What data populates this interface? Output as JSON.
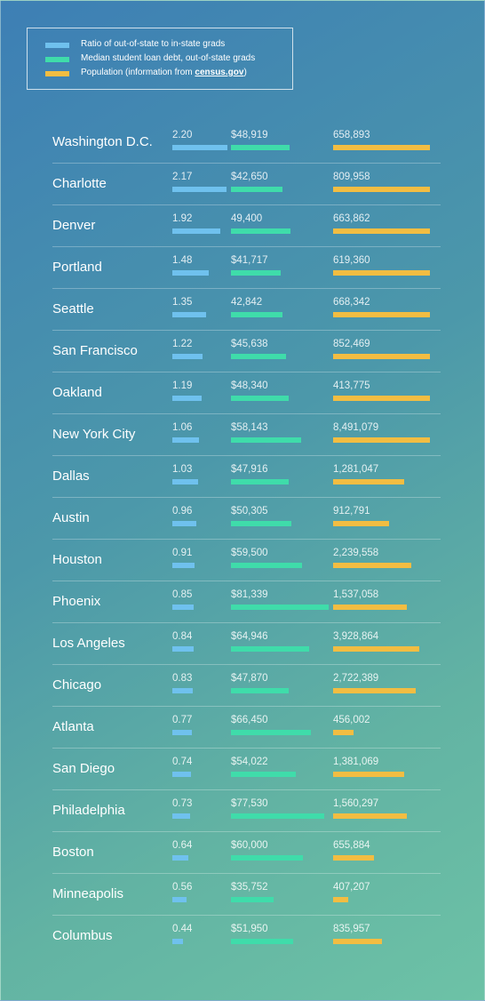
{
  "colors": {
    "ratio": "#6fc1ee",
    "debt": "#3fdcaa",
    "population": "#f2bd42"
  },
  "legend": [
    {
      "key": "ratio",
      "label": "Ratio of out-of-state to in-state grads",
      "swatch_color": "#6fc1ee"
    },
    {
      "key": "debt",
      "label": "Median student loan debt, out-of-state grads",
      "swatch_color": "#3fdcaa"
    },
    {
      "key": "population",
      "label_prefix": "Population (information from ",
      "label_link": "census.gov",
      "label_suffix": ")",
      "swatch_color": "#f2bd42"
    }
  ],
  "chart_data": {
    "type": "bar",
    "orientation": "horizontal",
    "categories": [
      "Washington D.C.",
      "Charlotte",
      "Denver",
      "Portland",
      "Seattle",
      "San Francisco",
      "Oakland",
      "New York City",
      "Dallas",
      "Austin",
      "Houston",
      "Phoenix",
      "Los Angeles",
      "Chicago",
      "Atlanta",
      "San Diego",
      "Philadelphia",
      "Boston",
      "Minneapolis",
      "Columbus"
    ],
    "series": [
      {
        "name": "Ratio of out-of-state to in-state grads",
        "key": "ratio",
        "values": [
          2.2,
          2.17,
          1.92,
          1.48,
          1.35,
          1.22,
          1.19,
          1.06,
          1.03,
          0.96,
          0.91,
          0.85,
          0.84,
          0.83,
          0.77,
          0.74,
          0.73,
          0.64,
          0.56,
          0.44
        ],
        "labels": [
          "2.20",
          "2.17",
          "1.92",
          "1.48",
          "1.35",
          "1.22",
          "1.19",
          "1.06",
          "1.03",
          "0.96",
          "0.91",
          "0.85",
          "0.84",
          "0.83",
          "0.77",
          "0.74",
          "0.73",
          "0.64",
          "0.56",
          "0.44"
        ]
      },
      {
        "name": "Median student loan debt, out-of-state grads",
        "key": "debt",
        "values": [
          48919,
          42650,
          49400,
          41717,
          42842,
          45638,
          48340,
          58143,
          47916,
          50305,
          59500,
          81339,
          64946,
          47870,
          66450,
          54022,
          77530,
          60000,
          35752,
          51950
        ],
        "labels": [
          "$48,919",
          "$42,650",
          "49,400",
          "$41,717",
          "42,842",
          "$45,638",
          "$48,340",
          "$58,143",
          "$47,916",
          "$50,305",
          "$59,500",
          "$81,339",
          "$64,946",
          "$47,870",
          "$66,450",
          "$54,022",
          "$77,530",
          "$60,000",
          "$35,752",
          "$51,950"
        ]
      },
      {
        "name": "Population (information from census.gov)",
        "key": "population",
        "values": [
          658893,
          809958,
          663862,
          619360,
          668342,
          852469,
          413775,
          8491079,
          1281047,
          912791,
          2239558,
          1537058,
          3928864,
          2722389,
          456002,
          1381069,
          1560297,
          655884,
          407207,
          835957
        ],
        "labels": [
          "658,893",
          "809,958",
          "663,862",
          "619,360",
          "668,342",
          "852,469",
          "413,775",
          "8,491,079",
          "1,281,047",
          "912,791",
          "2,239,558",
          "1,537,058",
          "3,928,864",
          "2,722,389",
          "456,002",
          "1,381,069",
          "1,560,297",
          "655,884",
          "407,207",
          "835,957"
        ],
        "bar_fraction": [
          1.0,
          1.0,
          1.0,
          1.0,
          1.0,
          1.0,
          1.0,
          1.0,
          0.73,
          0.58,
          0.81,
          0.76,
          0.89,
          0.85,
          0.21,
          0.73,
          0.76,
          0.42,
          0.16,
          0.5
        ]
      }
    ]
  }
}
